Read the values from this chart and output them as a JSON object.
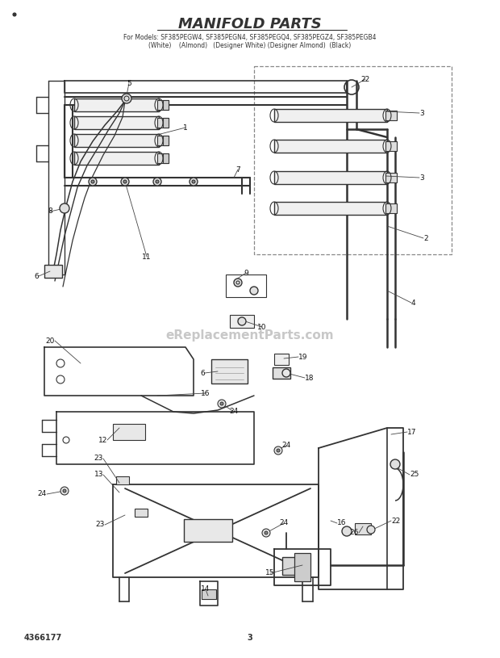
{
  "title": "MANIFOLD PARTS",
  "subtitle_line1": "For Models: SF385PEGW4, SF385PEGN4, SF385PEGQ4, SF385PEGZ4, SF385PEGB4",
  "subtitle_line2": "(White)    (Almond)   (Designer White) (Designer Almond)  (Black)",
  "doc_number": "4366177",
  "page_number": "3",
  "bg_color": "#ffffff",
  "line_color": "#333333",
  "watermark_text": "eReplacementParts.com",
  "watermark_color": "#c8c8c8",
  "title_fontsize": 13,
  "subtitle_fontsize": 5.5,
  "footer_fontsize": 7
}
